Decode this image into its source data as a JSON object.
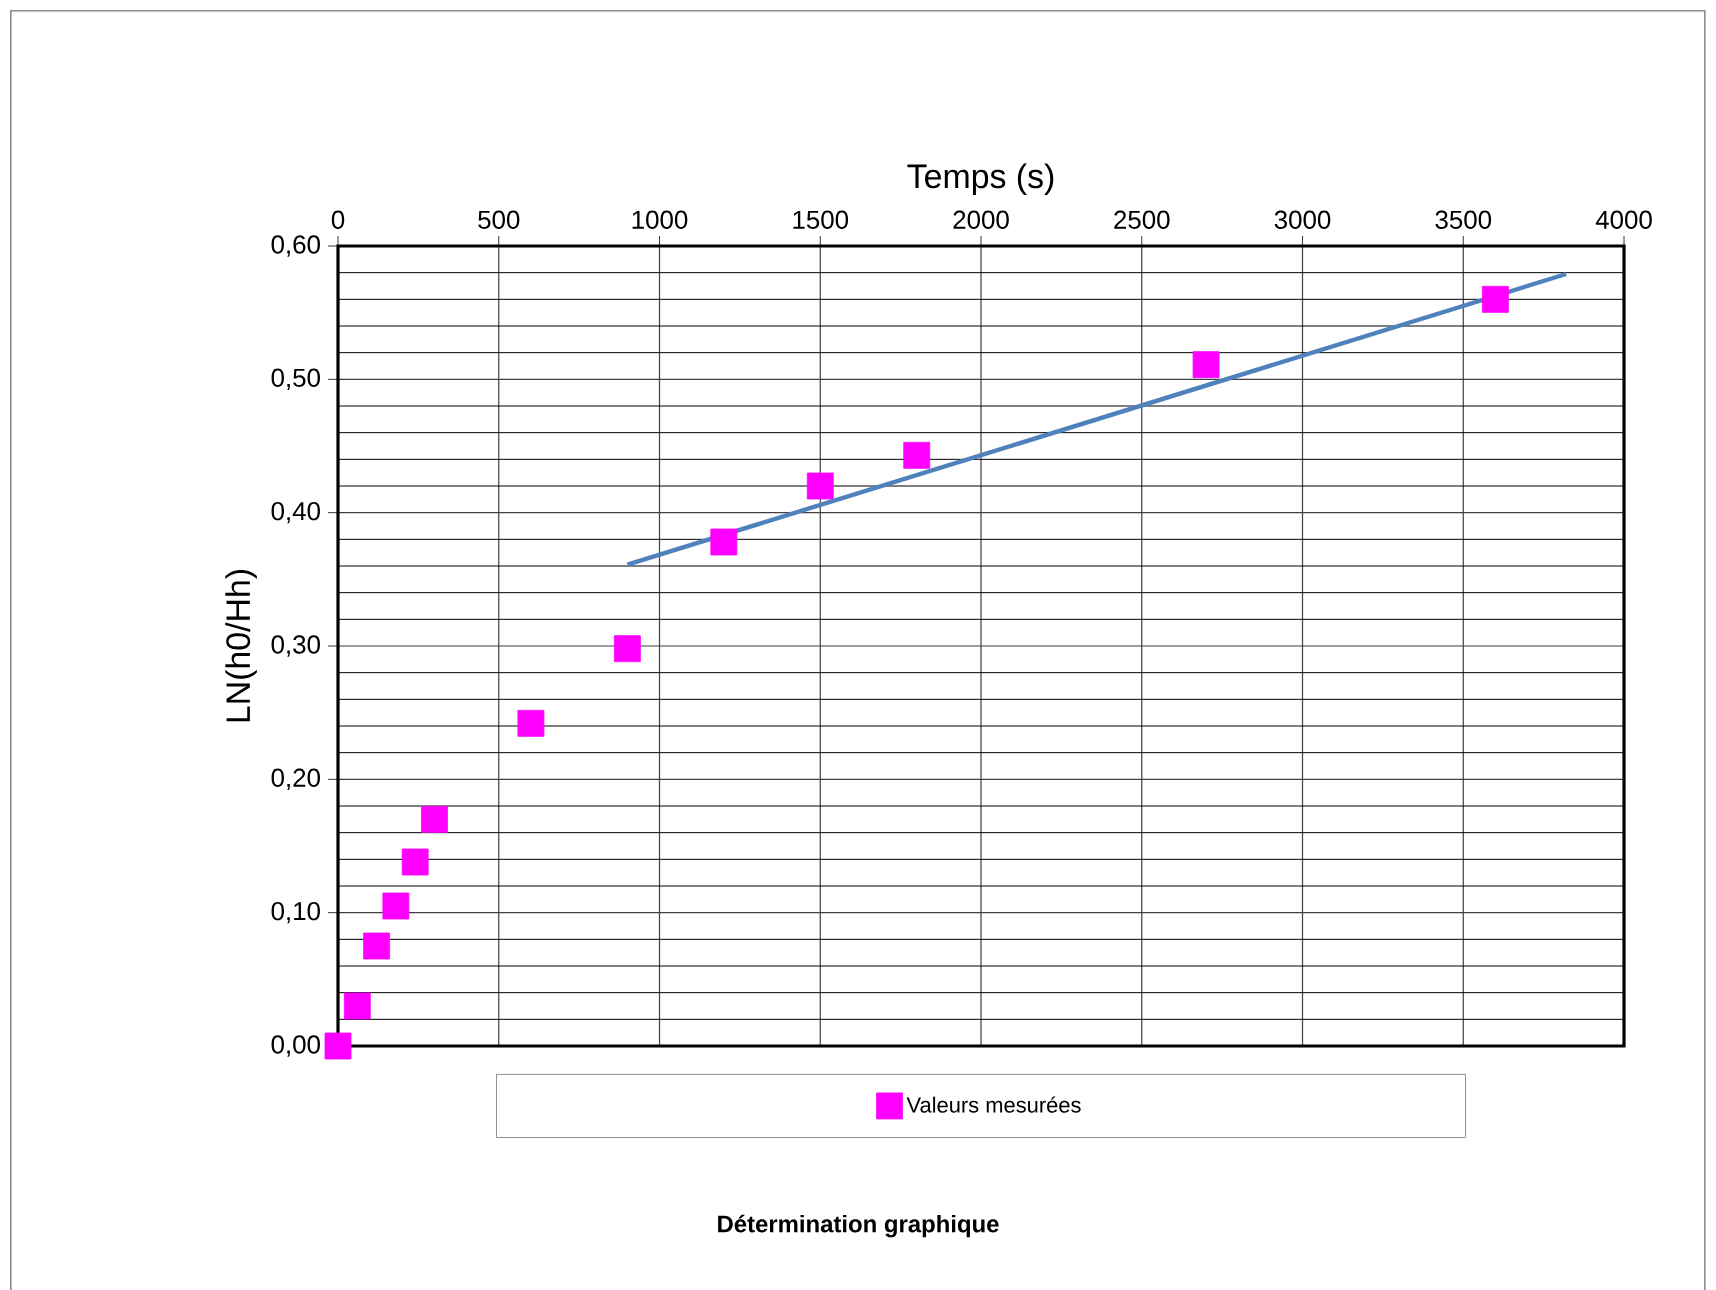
{
  "chart_data": {
    "type": "scatter",
    "title": "Détermination graphique",
    "xlabel": "Temps (s)",
    "ylabel": "LN(h0/Hh)",
    "xlim": [
      0,
      4000
    ],
    "xticks": [
      0,
      500,
      1000,
      1500,
      2000,
      2500,
      3000,
      3500,
      4000
    ],
    "ylim": [
      0,
      0.6
    ],
    "yticks": [
      {
        "value": 0,
        "label": "0,00"
      },
      {
        "value": 0.1,
        "label": "0,10"
      },
      {
        "value": 0.2,
        "label": "0,20"
      },
      {
        "value": 0.3,
        "label": "0,30"
      },
      {
        "value": 0.4,
        "label": "0,40"
      },
      {
        "value": 0.5,
        "label": "0,50"
      },
      {
        "value": 0.6,
        "label": "0,60"
      }
    ],
    "grid": true,
    "legend": "bottom",
    "series": [
      {
        "name": "Valeurs mesurées",
        "type": "scatter",
        "marker": "square",
        "color": "#ff00ff",
        "x": [
          0,
          60,
          120,
          180,
          240,
          300,
          600,
          900,
          1200,
          1500,
          1800,
          2700,
          3600
        ],
        "values": [
          0,
          0.03,
          0.075,
          0.105,
          0.138,
          0.17,
          0.242,
          0.298,
          0.378,
          0.42,
          0.443,
          0.511,
          0.56
        ]
      },
      {
        "type": "line",
        "marker": "none",
        "color": "#4f81bd",
        "x": [
          900,
          3820
        ],
        "values": [
          0.361,
          0.579
        ]
      }
    ]
  }
}
